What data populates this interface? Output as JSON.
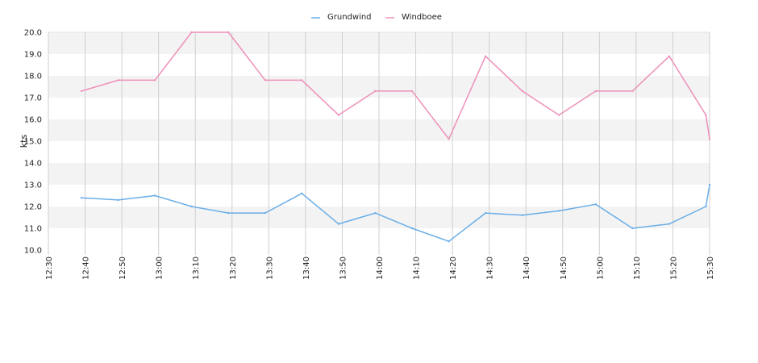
{
  "chart_data": {
    "type": "line",
    "title": "",
    "xlabel": "",
    "ylabel": "kts",
    "ylim": [
      10.0,
      20.0
    ],
    "y_ticks": [
      "10.0",
      "11.0",
      "12.0",
      "13.0",
      "14.0",
      "15.0",
      "16.0",
      "17.0",
      "18.0",
      "19.0",
      "20.0"
    ],
    "x_ticks": [
      "12:30",
      "12:40",
      "12:50",
      "13:00",
      "13:10",
      "13:20",
      "13:30",
      "13:40",
      "13:50",
      "14:00",
      "14:10",
      "14:20",
      "14:30",
      "14:40",
      "14:50",
      "15:00",
      "15:10",
      "15:20",
      "15:30"
    ],
    "legend_position": "top-center",
    "grid": true,
    "series": [
      {
        "name": "Grundwind",
        "color": "#6aaee8",
        "x": [
          "12:39",
          "12:49",
          "12:59",
          "13:09",
          "13:19",
          "13:29",
          "13:39",
          "13:49",
          "13:59",
          "14:09",
          "14:19",
          "14:29",
          "14:39",
          "14:49",
          "14:59",
          "15:09",
          "15:19",
          "15:29",
          "15:30"
        ],
        "values": [
          12.4,
          12.3,
          12.5,
          12.0,
          11.7,
          11.7,
          12.6,
          11.2,
          11.7,
          11.0,
          10.4,
          11.7,
          11.6,
          11.8,
          12.1,
          11.0,
          11.2,
          12.0,
          13.0
        ]
      },
      {
        "name": "Windboee",
        "color": "#ee90ba",
        "x": [
          "12:39",
          "12:49",
          "12:59",
          "13:09",
          "13:19",
          "13:29",
          "13:39",
          "13:49",
          "13:59",
          "14:09",
          "14:19",
          "14:29",
          "14:39",
          "14:49",
          "14:59",
          "15:09",
          "15:19",
          "15:29",
          "15:30"
        ],
        "values": [
          17.3,
          17.8,
          17.8,
          20.0,
          20.0,
          17.8,
          17.8,
          16.2,
          17.3,
          17.3,
          15.1,
          18.9,
          17.3,
          16.2,
          17.3,
          17.3,
          18.9,
          16.2,
          15.1
        ]
      }
    ]
  }
}
